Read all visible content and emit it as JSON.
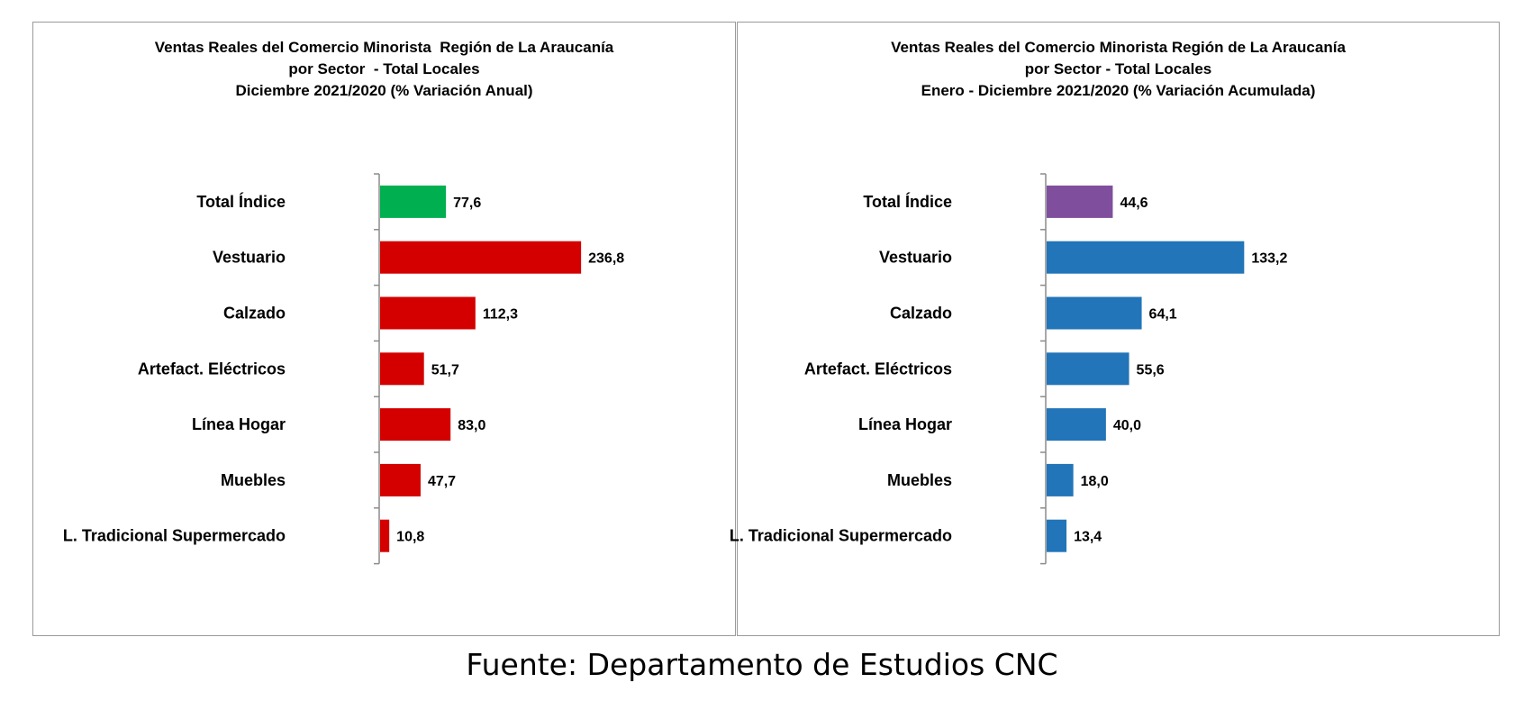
{
  "chart_data": [
    {
      "type": "bar",
      "orientation": "horizontal",
      "title_lines": [
        "Ventas Reales del Comercio Minorista  Región de La Araucanía",
        "por Sector  - Total Locales",
        "Diciembre 2021/2020 (% Variación Anual)"
      ],
      "categories": [
        "Total Índice",
        "Vestuario",
        "Calzado",
        "Artefact. Eléctricos",
        "Línea Hogar",
        "Muebles",
        "L. Tradicional Supermercado"
      ],
      "values": [
        77.6,
        236.8,
        112.3,
        51.7,
        83.0,
        47.7,
        10.8
      ],
      "value_labels": [
        "77,6",
        "236,8",
        "112,3",
        "51,7",
        "83,0",
        "47,7",
        "10,8"
      ],
      "colors": [
        "#00b050",
        "#d40000",
        "#d40000",
        "#d40000",
        "#d40000",
        "#d40000",
        "#d40000"
      ],
      "xlim": [
        0,
        260
      ]
    },
    {
      "type": "bar",
      "orientation": "horizontal",
      "title_lines": [
        "Ventas Reales del Comercio Minorista Región de La Araucanía",
        "por Sector - Total Locales",
        "Enero - Diciembre 2021/2020 (% Variación Acumulada)"
      ],
      "categories": [
        "Total Índice",
        "Vestuario",
        "Calzado",
        "Artefact. Eléctricos",
        "Línea Hogar",
        "Muebles",
        "L. Tradicional Supermercado"
      ],
      "values": [
        44.6,
        133.2,
        64.1,
        55.6,
        40.0,
        18.0,
        13.4
      ],
      "value_labels": [
        "44,6",
        "133,2",
        "64,1",
        "55,6",
        "40,0",
        "18,0",
        "13,4"
      ],
      "colors": [
        "#7f4f9e",
        "#2175b8",
        "#2175b8",
        "#2175b8",
        "#2175b8",
        "#2175b8",
        "#2175b8"
      ],
      "xlim": [
        0,
        150
      ]
    }
  ],
  "source": "Fuente: Departamento de Estudios CNC"
}
